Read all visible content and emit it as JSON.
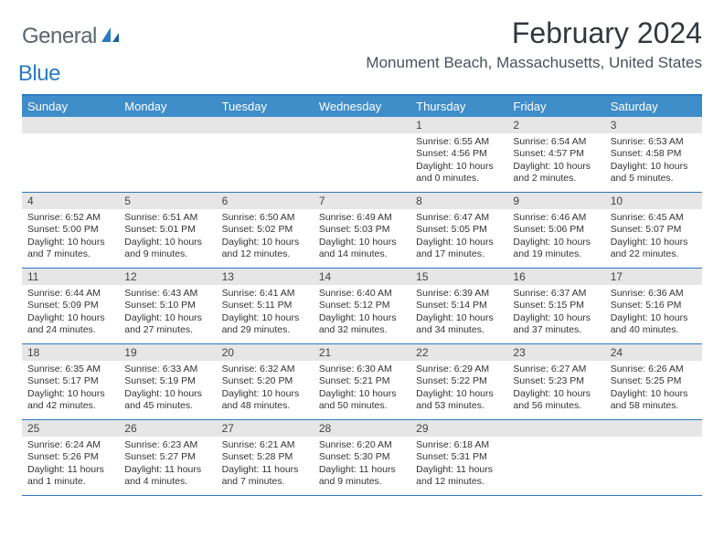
{
  "brand": {
    "general": "General",
    "blue": "Blue"
  },
  "title": "February 2024",
  "location": "Monument Beach, Massachusetts, United States",
  "colors": {
    "header_bg": "#3f8dc9",
    "border": "#2b7bc0",
    "daynum_bg": "#e6e6e6",
    "logo_gray": "#5a6470",
    "logo_blue": "#2b7bc0"
  },
  "day_headers": [
    "Sunday",
    "Monday",
    "Tuesday",
    "Wednesday",
    "Thursday",
    "Friday",
    "Saturday"
  ],
  "weeks": [
    [
      null,
      null,
      null,
      null,
      {
        "n": "1",
        "sr": "Sunrise: 6:55 AM",
        "ss": "Sunset: 4:56 PM",
        "d1": "Daylight: 10 hours",
        "d2": "and 0 minutes."
      },
      {
        "n": "2",
        "sr": "Sunrise: 6:54 AM",
        "ss": "Sunset: 4:57 PM",
        "d1": "Daylight: 10 hours",
        "d2": "and 2 minutes."
      },
      {
        "n": "3",
        "sr": "Sunrise: 6:53 AM",
        "ss": "Sunset: 4:58 PM",
        "d1": "Daylight: 10 hours",
        "d2": "and 5 minutes."
      }
    ],
    [
      {
        "n": "4",
        "sr": "Sunrise: 6:52 AM",
        "ss": "Sunset: 5:00 PM",
        "d1": "Daylight: 10 hours",
        "d2": "and 7 minutes."
      },
      {
        "n": "5",
        "sr": "Sunrise: 6:51 AM",
        "ss": "Sunset: 5:01 PM",
        "d1": "Daylight: 10 hours",
        "d2": "and 9 minutes."
      },
      {
        "n": "6",
        "sr": "Sunrise: 6:50 AM",
        "ss": "Sunset: 5:02 PM",
        "d1": "Daylight: 10 hours",
        "d2": "and 12 minutes."
      },
      {
        "n": "7",
        "sr": "Sunrise: 6:49 AM",
        "ss": "Sunset: 5:03 PM",
        "d1": "Daylight: 10 hours",
        "d2": "and 14 minutes."
      },
      {
        "n": "8",
        "sr": "Sunrise: 6:47 AM",
        "ss": "Sunset: 5:05 PM",
        "d1": "Daylight: 10 hours",
        "d2": "and 17 minutes."
      },
      {
        "n": "9",
        "sr": "Sunrise: 6:46 AM",
        "ss": "Sunset: 5:06 PM",
        "d1": "Daylight: 10 hours",
        "d2": "and 19 minutes."
      },
      {
        "n": "10",
        "sr": "Sunrise: 6:45 AM",
        "ss": "Sunset: 5:07 PM",
        "d1": "Daylight: 10 hours",
        "d2": "and 22 minutes."
      }
    ],
    [
      {
        "n": "11",
        "sr": "Sunrise: 6:44 AM",
        "ss": "Sunset: 5:09 PM",
        "d1": "Daylight: 10 hours",
        "d2": "and 24 minutes."
      },
      {
        "n": "12",
        "sr": "Sunrise: 6:43 AM",
        "ss": "Sunset: 5:10 PM",
        "d1": "Daylight: 10 hours",
        "d2": "and 27 minutes."
      },
      {
        "n": "13",
        "sr": "Sunrise: 6:41 AM",
        "ss": "Sunset: 5:11 PM",
        "d1": "Daylight: 10 hours",
        "d2": "and 29 minutes."
      },
      {
        "n": "14",
        "sr": "Sunrise: 6:40 AM",
        "ss": "Sunset: 5:12 PM",
        "d1": "Daylight: 10 hours",
        "d2": "and 32 minutes."
      },
      {
        "n": "15",
        "sr": "Sunrise: 6:39 AM",
        "ss": "Sunset: 5:14 PM",
        "d1": "Daylight: 10 hours",
        "d2": "and 34 minutes."
      },
      {
        "n": "16",
        "sr": "Sunrise: 6:37 AM",
        "ss": "Sunset: 5:15 PM",
        "d1": "Daylight: 10 hours",
        "d2": "and 37 minutes."
      },
      {
        "n": "17",
        "sr": "Sunrise: 6:36 AM",
        "ss": "Sunset: 5:16 PM",
        "d1": "Daylight: 10 hours",
        "d2": "and 40 minutes."
      }
    ],
    [
      {
        "n": "18",
        "sr": "Sunrise: 6:35 AM",
        "ss": "Sunset: 5:17 PM",
        "d1": "Daylight: 10 hours",
        "d2": "and 42 minutes."
      },
      {
        "n": "19",
        "sr": "Sunrise: 6:33 AM",
        "ss": "Sunset: 5:19 PM",
        "d1": "Daylight: 10 hours",
        "d2": "and 45 minutes."
      },
      {
        "n": "20",
        "sr": "Sunrise: 6:32 AM",
        "ss": "Sunset: 5:20 PM",
        "d1": "Daylight: 10 hours",
        "d2": "and 48 minutes."
      },
      {
        "n": "21",
        "sr": "Sunrise: 6:30 AM",
        "ss": "Sunset: 5:21 PM",
        "d1": "Daylight: 10 hours",
        "d2": "and 50 minutes."
      },
      {
        "n": "22",
        "sr": "Sunrise: 6:29 AM",
        "ss": "Sunset: 5:22 PM",
        "d1": "Daylight: 10 hours",
        "d2": "and 53 minutes."
      },
      {
        "n": "23",
        "sr": "Sunrise: 6:27 AM",
        "ss": "Sunset: 5:23 PM",
        "d1": "Daylight: 10 hours",
        "d2": "and 56 minutes."
      },
      {
        "n": "24",
        "sr": "Sunrise: 6:26 AM",
        "ss": "Sunset: 5:25 PM",
        "d1": "Daylight: 10 hours",
        "d2": "and 58 minutes."
      }
    ],
    [
      {
        "n": "25",
        "sr": "Sunrise: 6:24 AM",
        "ss": "Sunset: 5:26 PM",
        "d1": "Daylight: 11 hours",
        "d2": "and 1 minute."
      },
      {
        "n": "26",
        "sr": "Sunrise: 6:23 AM",
        "ss": "Sunset: 5:27 PM",
        "d1": "Daylight: 11 hours",
        "d2": "and 4 minutes."
      },
      {
        "n": "27",
        "sr": "Sunrise: 6:21 AM",
        "ss": "Sunset: 5:28 PM",
        "d1": "Daylight: 11 hours",
        "d2": "and 7 minutes."
      },
      {
        "n": "28",
        "sr": "Sunrise: 6:20 AM",
        "ss": "Sunset: 5:30 PM",
        "d1": "Daylight: 11 hours",
        "d2": "and 9 minutes."
      },
      {
        "n": "29",
        "sr": "Sunrise: 6:18 AM",
        "ss": "Sunset: 5:31 PM",
        "d1": "Daylight: 11 hours",
        "d2": "and 12 minutes."
      },
      null,
      null
    ]
  ]
}
